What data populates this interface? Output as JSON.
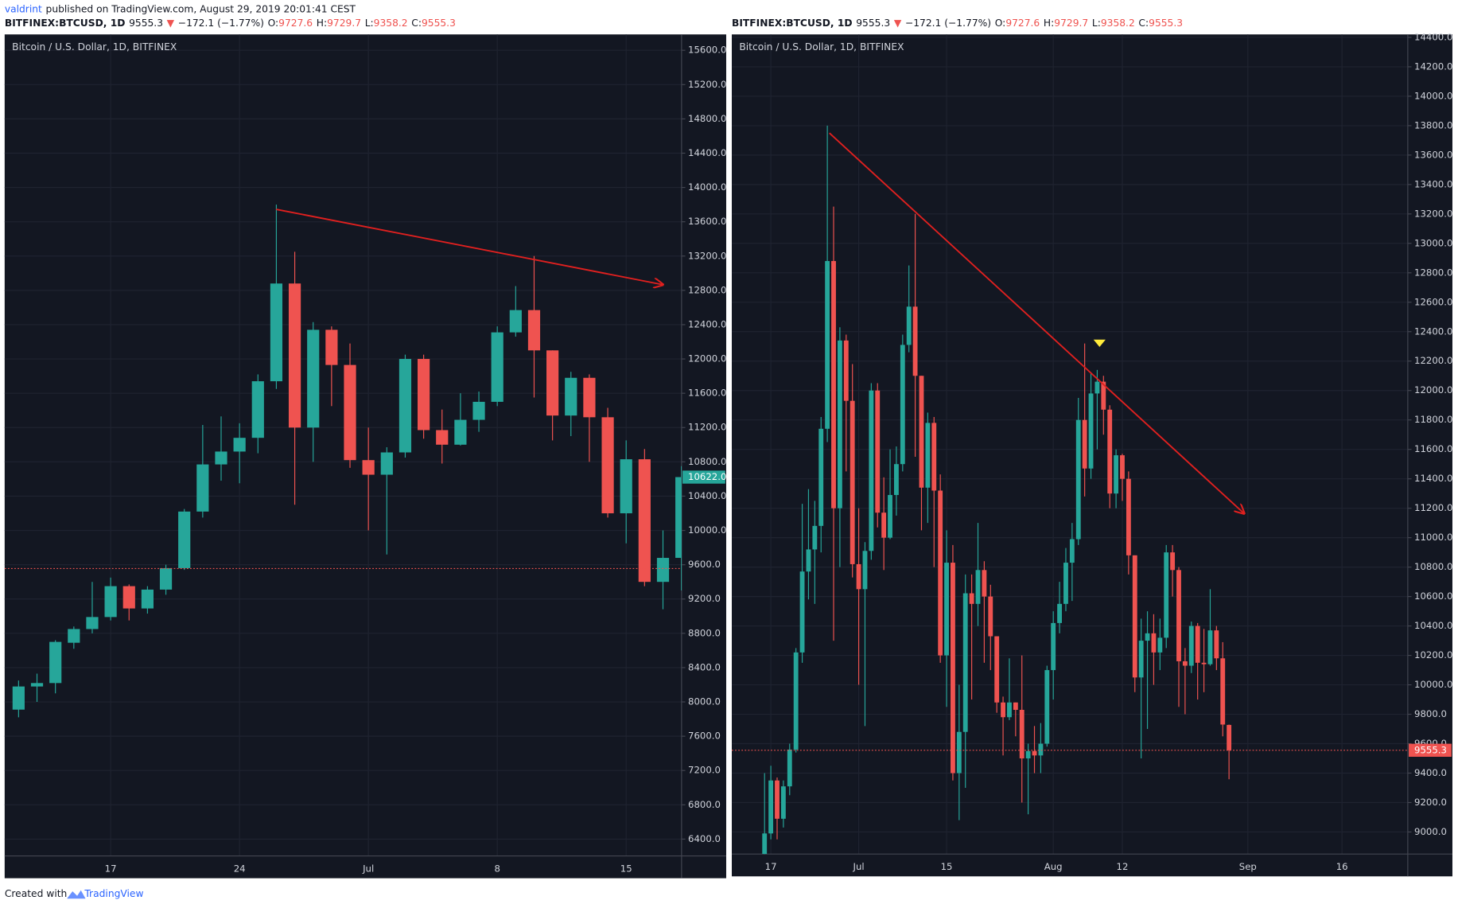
{
  "header": {
    "author": "valdrint",
    "published": "published on TradingView.com, August 29, 2019 20:01:41 CEST"
  },
  "symbol_line": {
    "symbol": "BITFINEX:BTCUSD, 1D",
    "last": "9555.3",
    "arrow": "▼",
    "change": "−172.1 (−1.77%)",
    "ohlc": [
      {
        "key": "O:",
        "value": "9727.6"
      },
      {
        "key": "H:",
        "value": "9729.7"
      },
      {
        "key": "L:",
        "value": "9358.2"
      },
      {
        "key": "C:",
        "value": "9555.3"
      }
    ]
  },
  "footer": {
    "text": "Created with",
    "brand": "TradingView"
  },
  "chart_data": [
    {
      "type": "candlestick",
      "title": "Bitcoin / U.S. Dollar, 1D, BITFINEX",
      "categories": [
        null,
        null,
        null,
        null,
        null,
        "17",
        null,
        null,
        null,
        null,
        null,
        null,
        "24",
        null,
        null,
        null,
        null,
        null,
        null,
        "Jul",
        null,
        null,
        null,
        null,
        null,
        null,
        "8",
        null,
        null,
        null,
        null,
        null,
        null,
        "15",
        null,
        null,
        null
      ],
      "open": [
        7910,
        8180,
        8220,
        8690,
        8850,
        8990,
        9350,
        9090,
        9310,
        9560,
        10220,
        10770,
        10920,
        11080,
        11740,
        12880,
        11200,
        12340,
        11930,
        10820,
        10650,
        10910,
        12000,
        11170,
        11000,
        11290,
        11500,
        12310,
        12570,
        12100,
        11340,
        11780,
        11320,
        10200,
        10830,
        9400,
        9680
      ],
      "high": [
        8250,
        8330,
        8720,
        8880,
        9400,
        9450,
        9370,
        9350,
        9600,
        10250,
        11230,
        11330,
        11250,
        11820,
        13800,
        13250,
        12430,
        12380,
        12180,
        11200,
        10970,
        12050,
        12050,
        11410,
        11600,
        11620,
        12380,
        12850,
        13200,
        12100,
        11850,
        11820,
        11430,
        11050,
        10950,
        10000,
        10750
      ],
      "low": [
        7820,
        8000,
        8100,
        8620,
        8800,
        8950,
        8950,
        9030,
        9250,
        9540,
        10150,
        10580,
        10550,
        10900,
        11650,
        10300,
        10800,
        11450,
        10730,
        10000,
        9720,
        10850,
        11070,
        10780,
        10990,
        11150,
        11450,
        12260,
        11550,
        11050,
        11100,
        10800,
        10150,
        9850,
        9350,
        9080,
        9300
      ],
      "close": [
        8180,
        8220,
        8700,
        8850,
        8990,
        9350,
        9090,
        9310,
        9560,
        10220,
        10770,
        10920,
        11080,
        11740,
        12880,
        11200,
        12340,
        11930,
        10820,
        10650,
        10910,
        12000,
        11170,
        11000,
        11290,
        11500,
        12310,
        12570,
        12100,
        11340,
        11780,
        11320,
        10200,
        10830,
        9400,
        9680,
        10622
      ],
      "up_color": "#26a69a",
      "down_color": "#ef5350",
      "price_label": "10622.0",
      "price_line": 9555.3,
      "ylim": [
        6204,
        15785
      ],
      "yticks": [
        {
          "value": 6400,
          "label": "6400.0"
        },
        {
          "value": 6800,
          "label": "6800.0"
        },
        {
          "value": 7200,
          "label": "7200.0"
        },
        {
          "value": 7600,
          "label": "7600.0"
        },
        {
          "value": 8000,
          "label": "8000.0"
        },
        {
          "value": 8400,
          "label": "8400.0"
        },
        {
          "value": 8800,
          "label": "8800.0"
        },
        {
          "value": 9200,
          "label": "9200.0"
        },
        {
          "value": 9600,
          "label": "9600.0"
        },
        {
          "value": 10000,
          "label": "10000.0"
        },
        {
          "value": 10400,
          "label": "10400.0"
        },
        {
          "value": 10800,
          "label": "10800.0"
        },
        {
          "value": 11200,
          "label": "11200.0"
        },
        {
          "value": 11600,
          "label": "11600.0"
        },
        {
          "value": 12000,
          "label": "12000.0"
        },
        {
          "value": 12400,
          "label": "12400.0"
        },
        {
          "value": 12800,
          "label": "12800.0"
        },
        {
          "value": 13200,
          "label": "13200.0"
        },
        {
          "value": 13600,
          "label": "13600.0"
        },
        {
          "value": 14000,
          "label": "14000.0"
        },
        {
          "value": 14400,
          "label": "14400.0"
        },
        {
          "value": 14800,
          "label": "14800.0"
        },
        {
          "value": 15200,
          "label": "15200.0"
        },
        {
          "value": 15600,
          "label": "15600.0"
        }
      ],
      "grid": true
    },
    {
      "type": "candlestick",
      "title": "Bitcoin / U.S. Dollar, 1D, BITFINEX",
      "categories": [
        null,
        "17",
        null,
        null,
        null,
        null,
        null,
        null,
        null,
        null,
        null,
        null,
        null,
        null,
        null,
        "Jul",
        null,
        null,
        null,
        null,
        null,
        null,
        null,
        null,
        null,
        null,
        null,
        null,
        null,
        "15",
        null,
        null,
        null,
        null,
        null,
        null,
        null,
        null,
        null,
        null,
        null,
        null,
        null,
        null,
        null,
        null,
        "Aug",
        null,
        null,
        null,
        null,
        null,
        null,
        null,
        null,
        null,
        null,
        "12",
        null,
        null,
        null,
        null,
        null,
        null,
        null,
        null,
        null,
        null,
        null,
        null,
        null,
        null,
        null,
        null,
        null,
        null,
        null,
        "Sep",
        null,
        null,
        null,
        null,
        null,
        null,
        null,
        null,
        null,
        null,
        null,
        null,
        null,
        null,
        "16",
        null,
        null,
        null,
        null,
        null,
        null,
        null,
        null,
        null
      ],
      "open": [
        8850,
        8990,
        9350,
        9090,
        9310,
        9560,
        10220,
        10770,
        10920,
        11080,
        11740,
        12880,
        11200,
        12340,
        11930,
        10820,
        10650,
        10910,
        12000,
        11170,
        11000,
        11290,
        11500,
        12310,
        12570,
        12100,
        11340,
        11780,
        11320,
        10200,
        10830,
        9400,
        9680,
        10622,
        10550,
        10780,
        10600,
        10330,
        9880,
        9780,
        9880,
        9830,
        9500,
        9550,
        9520,
        9600,
        10100,
        10420,
        10550,
        10830,
        10990,
        11800,
        11470,
        11980,
        12060,
        11870,
        11300,
        11560,
        11400,
        10880,
        10050,
        10300,
        10350,
        10220,
        10320,
        10900,
        10780,
        10160,
        10130,
        10400,
        10150,
        10140,
        10370,
        10180,
        9727.6,
        null,
        null,
        null,
        null,
        null,
        null,
        null,
        null,
        null,
        null,
        null,
        null,
        null,
        null,
        null,
        null,
        null,
        null,
        null,
        null,
        null,
        null,
        null,
        null,
        null,
        null,
        null
      ],
      "high": [
        9400,
        9450,
        9370,
        9350,
        9600,
        10250,
        11230,
        11330,
        11250,
        11820,
        13800,
        13250,
        12430,
        12380,
        12180,
        11200,
        10970,
        12050,
        12050,
        11410,
        11600,
        11620,
        12380,
        12850,
        13200,
        12100,
        11850,
        11820,
        11430,
        11050,
        10950,
        10000,
        10750,
        10750,
        11100,
        10840,
        10680,
        10330,
        9920,
        10180,
        9880,
        10200,
        9600,
        9720,
        9740,
        10130,
        10500,
        10700,
        10930,
        11100,
        11950,
        12320,
        12120,
        12140,
        12100,
        11900,
        11600,
        11570,
        11450,
        10880,
        10450,
        10500,
        10480,
        10450,
        10950,
        10950,
        10800,
        10250,
        10430,
        10420,
        10380,
        10650,
        10400,
        10290,
        9729.7,
        null,
        null,
        null,
        null,
        null,
        null,
        null,
        null,
        null,
        null,
        null,
        null,
        null,
        null,
        null,
        null,
        null,
        null,
        null,
        null,
        null,
        null,
        null,
        null,
        null,
        null,
        null
      ],
      "low": [
        8800,
        8950,
        8950,
        9030,
        9250,
        9540,
        10150,
        10580,
        10550,
        10900,
        11650,
        10300,
        10800,
        11450,
        10730,
        10000,
        9720,
        10850,
        11070,
        10780,
        10990,
        11150,
        11450,
        12260,
        11550,
        11050,
        11100,
        10800,
        10150,
        9850,
        9350,
        9080,
        9300,
        9900,
        10400,
        10150,
        10100,
        9810,
        9520,
        9760,
        9650,
        9200,
        9120,
        9400,
        9400,
        9580,
        9900,
        10350,
        10500,
        10570,
        10950,
        11280,
        11400,
        11600,
        11700,
        11200,
        11200,
        11250,
        10750,
        9950,
        9500,
        9700,
        10000,
        10100,
        10250,
        10600,
        9850,
        9800,
        10080,
        9900,
        9950,
        10130,
        10100,
        9650,
        9358.2,
        null,
        null,
        null,
        null,
        null,
        null,
        null,
        null,
        null,
        null,
        null,
        null,
        null,
        null,
        null,
        null,
        null,
        null,
        null,
        null,
        null,
        null,
        null,
        null,
        null,
        null,
        null
      ],
      "close": [
        8990,
        9350,
        9090,
        9310,
        9560,
        10220,
        10770,
        10920,
        11080,
        11740,
        12880,
        11200,
        12340,
        11930,
        10820,
        10650,
        10910,
        12000,
        11170,
        11000,
        11290,
        11500,
        12310,
        12570,
        12100,
        11340,
        11780,
        11320,
        10200,
        10830,
        9400,
        9680,
        10622,
        10550,
        10780,
        10600,
        10330,
        9880,
        9780,
        9880,
        9830,
        9500,
        9550,
        9520,
        9600,
        10100,
        10420,
        10550,
        10830,
        10990,
        11800,
        11470,
        11980,
        12060,
        11870,
        11300,
        11560,
        11400,
        10880,
        10050,
        10300,
        10350,
        10220,
        10320,
        10900,
        10780,
        10160,
        10130,
        10400,
        10150,
        10140,
        10370,
        10180,
        9730,
        9555.3,
        null,
        null,
        null,
        null,
        null,
        null,
        null,
        null,
        null,
        null,
        null,
        null,
        null,
        null,
        null,
        null,
        null,
        null,
        null,
        null,
        null,
        null,
        null,
        null,
        null,
        null,
        null
      ],
      "up_color": "#26a69a",
      "down_color": "#ef5350",
      "price_label": "9555.3",
      "ylim": [
        8850,
        14420
      ],
      "yticks": [
        {
          "value": 9000,
          "label": "9000.0"
        },
        {
          "value": 9200,
          "label": "9200.0"
        },
        {
          "value": 9400,
          "label": "9400.0"
        },
        {
          "value": 9600,
          "label": "9600.0"
        },
        {
          "value": 9800,
          "label": "9800.0"
        },
        {
          "value": 10000,
          "label": "10000.0"
        },
        {
          "value": 10200,
          "label": "10200.0"
        },
        {
          "value": 10400,
          "label": "10400.0"
        },
        {
          "value": 10600,
          "label": "10600.0"
        },
        {
          "value": 10800,
          "label": "10800.0"
        },
        {
          "value": 11000,
          "label": "11000.0"
        },
        {
          "value": 11200,
          "label": "11200.0"
        },
        {
          "value": 11400,
          "label": "11400.0"
        },
        {
          "value": 11600,
          "label": "11600.0"
        },
        {
          "value": 11800,
          "label": "11800.0"
        },
        {
          "value": 12000,
          "label": "12000.0"
        },
        {
          "value": 12200,
          "label": "12200.0"
        },
        {
          "value": 12400,
          "label": "12400.0"
        },
        {
          "value": 12600,
          "label": "12600.0"
        },
        {
          "value": 12800,
          "label": "12800.0"
        },
        {
          "value": 13000,
          "label": "13000.0"
        },
        {
          "value": 13200,
          "label": "13200.0"
        },
        {
          "value": 13400,
          "label": "13400.0"
        },
        {
          "value": 13600,
          "label": "13600.0"
        },
        {
          "value": 13800,
          "label": "13800.0"
        },
        {
          "value": 14000,
          "label": "14000.0"
        },
        {
          "value": 14200,
          "label": "14200.0"
        },
        {
          "value": 14400,
          "label": "14400.0"
        }
      ],
      "grid": true
    }
  ]
}
